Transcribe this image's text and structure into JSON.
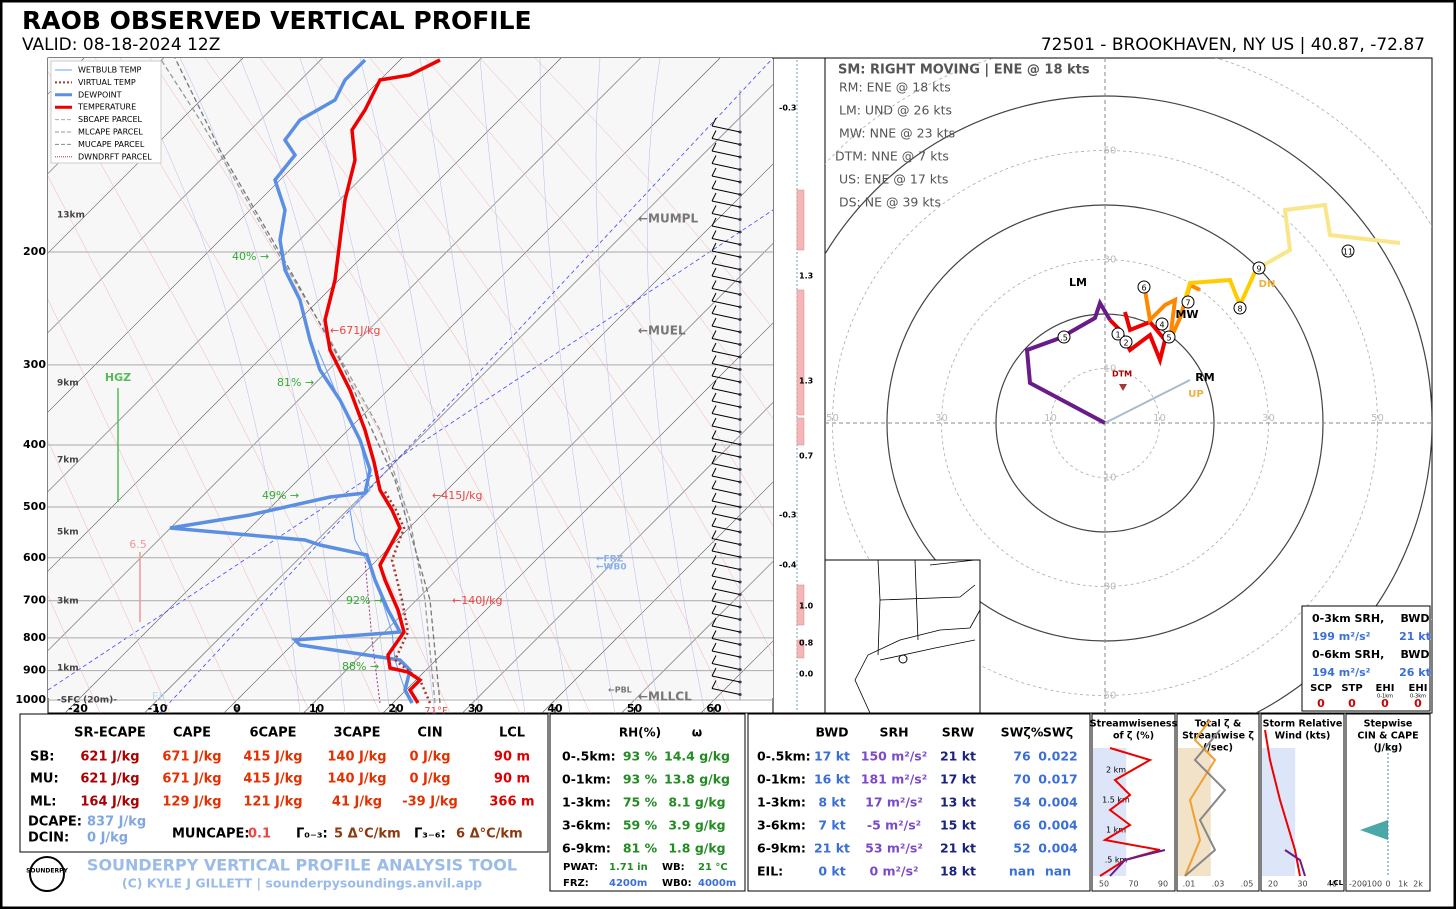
{
  "header": {
    "title": "RAOB OBSERVED VERTICAL PROFILE",
    "valid": "VALID: 08-18-2024 12Z",
    "station": "72501 - BROOKHAVEN, NY US | 40.87, -72.87"
  },
  "skewt": {
    "legend": [
      "WETBULB TEMP",
      "VIRTUAL TEMP",
      "DEWPOINT",
      "TEMPERATURE",
      "SBCAPE PARCEL",
      "MLCAPE PARCEL",
      "MUCAPE PARCEL",
      "DWNDRFT PARCEL"
    ],
    "pressure_labels": [
      200,
      300,
      400,
      500,
      600,
      700,
      800,
      900,
      1000
    ],
    "height_labels": [
      "13km",
      "9km",
      "7km",
      "5km",
      "3km",
      "1km",
      "-SFC (20m)-"
    ],
    "temp_labels": [
      -20,
      -10,
      0,
      10,
      20,
      30,
      40,
      50,
      60
    ],
    "rh_labels": [
      "40% →",
      "81% →",
      "49% →",
      "92% →",
      "88% →"
    ],
    "cape_labels": [
      "←671J/kg",
      "←415J/kg",
      "←140J/kg"
    ],
    "level_labels": [
      "←MUMPL",
      "←MUEL",
      "←FRZ",
      "←WB0",
      "←PBL",
      "←MLLCL"
    ],
    "hgz": "HGZ",
    "lapse": "6.5",
    "eil": "EIL",
    "sfc_temp": "71°F",
    "omega_labels": [
      "-0.3",
      "1.3",
      "1.3",
      "0.7",
      "-0.3",
      "-0.4",
      "1.0",
      "0.8",
      "0.0"
    ]
  },
  "hodograph": {
    "header": "SM: RIGHT MOVING | ENE @ 18 kts",
    "storm_motions": [
      "RM: ENE @ 18 kts",
      "LM: UND @ 26 kts",
      "MW: NNE @ 23 kts",
      "DTM: NNE @ 7 kts",
      "US: ENE @ 17 kts",
      "DS: NE @ 39 kts"
    ],
    "ring_labels": [
      10,
      30,
      50
    ],
    "markers": [
      "LM",
      "MW",
      "RM",
      "DTM",
      "UP",
      "DN"
    ],
    "points": [
      ".5",
      "1",
      "2",
      "4",
      "5",
      "6",
      "7",
      "8",
      "9",
      "11"
    ],
    "inset": {
      "rows": [
        [
          "0-3km SRH,",
          "BWD"
        ],
        [
          "199 m²/s²",
          "21 kt"
        ],
        [
          "0-6km SRH,",
          "BWD"
        ],
        [
          "194 m²/s²",
          "26 kt"
        ]
      ],
      "param_names": [
        "SCP",
        "STP",
        "EHI",
        "EHI"
      ],
      "param_subs": [
        "0-1km",
        "0-3km"
      ],
      "param_values": [
        "0",
        "0",
        "0",
        "0"
      ]
    }
  },
  "thermo_table": {
    "columns": [
      "SR-ECAPE",
      "CAPE",
      "6CAPE",
      "3CAPE",
      "CIN",
      "LCL"
    ],
    "rows": [
      {
        "label": "SB:",
        "cells": [
          "621 J/kg",
          "671 J/kg",
          "415 J/kg",
          "140 J/kg",
          "0 J/kg",
          "90 m"
        ]
      },
      {
        "label": "MU:",
        "cells": [
          "621 J/kg",
          "671 J/kg",
          "415 J/kg",
          "140 J/kg",
          "0 J/kg",
          "90 m"
        ]
      },
      {
        "label": "ML:",
        "cells": [
          "164 J/kg",
          "129 J/kg",
          "121 J/kg",
          "41 J/kg",
          "-39 J/kg",
          "366 m"
        ]
      }
    ],
    "dcape_label": "DCAPE:",
    "dcape": "837 J/kg",
    "dcin_label": "DCIN:",
    "dcin": "0 J/kg",
    "muncape_label": "MUNCAPE:",
    "muncape": "0.1",
    "lr03_label": "Γ₀₋₃:",
    "lr03": "5 Δ°C/km",
    "lr36_label": "Γ₃₋₆:",
    "lr36": "6 Δ°C/km"
  },
  "footer": {
    "logo": "SOUNDERPY",
    "tool": "SOUNDERPY VERTICAL PROFILE ANALYSIS TOOL",
    "credit": "(C) KYLE J GILLETT | sounderpysoundings.anvil.app"
  },
  "moisture_table": {
    "columns": [
      "RH(%)",
      "ω"
    ],
    "rows": [
      [
        "0-.5km:",
        "93 %",
        "14.4 g/kg"
      ],
      [
        "0-1km:",
        "93 %",
        "13.8 g/kg"
      ],
      [
        "1-3km:",
        "75 %",
        "8.1 g/kg"
      ],
      [
        "3-6km:",
        "59 %",
        "3.9 g/kg"
      ],
      [
        "6-9km:",
        "81 %",
        "1.8 g/kg"
      ]
    ],
    "pwat_label": "PWAT:",
    "pwat": "1.71 in",
    "wb_label": "WB:",
    "wb": "21 °C",
    "frz_label": "FRZ:",
    "frz": "4200m",
    "wb0_label": "WB0:",
    "wb0": "4000m"
  },
  "kinematic_table": {
    "columns": [
      "BWD",
      "SRH",
      "SRW",
      "SWζ%",
      "SWζ"
    ],
    "rows": [
      [
        "0-.5km:",
        "17 kt",
        "150 m²/s²",
        "21 kt",
        "76",
        "0.022"
      ],
      [
        "0-1km:",
        "16 kt",
        "181 m²/s²",
        "17 kt",
        "70",
        "0.017"
      ],
      [
        "1-3km:",
        "8 kt",
        "17 m²/s²",
        "13 kt",
        "54",
        "0.004"
      ],
      [
        "3-6km:",
        "7 kt",
        "-5 m²/s²",
        "15 kt",
        "66",
        "0.004"
      ],
      [
        "6-9km:",
        "21 kt",
        "53 m²/s²",
        "21 kt",
        "52",
        "0.004"
      ],
      [
        "EIL:",
        "0 kt",
        "0 m²/s²",
        "18 kt",
        "nan",
        "nan"
      ]
    ]
  },
  "mini_panels": [
    {
      "title": [
        "Streamwiseness",
        "of ζ (%)"
      ],
      "ticks": [
        "50",
        "70",
        "90"
      ],
      "heights": [
        "2 km",
        "1.5 km",
        "1 km",
        ".5 km"
      ]
    },
    {
      "title": [
        "Total ζ &",
        "Streamwise ζ",
        "(/sec)"
      ],
      "ticks": [
        ".01",
        ".03",
        ".05"
      ]
    },
    {
      "title": [
        "Storm Relative",
        "Wind (kts)"
      ],
      "ticks": [
        "20",
        "30",
        "40"
      ],
      "extra": "LCL"
    },
    {
      "title": [
        "Stepwise",
        "CIN & CAPE",
        "(J/kg)"
      ],
      "ticks": [
        "-200",
        "-100",
        "0",
        "1k",
        "2k"
      ]
    }
  ]
}
